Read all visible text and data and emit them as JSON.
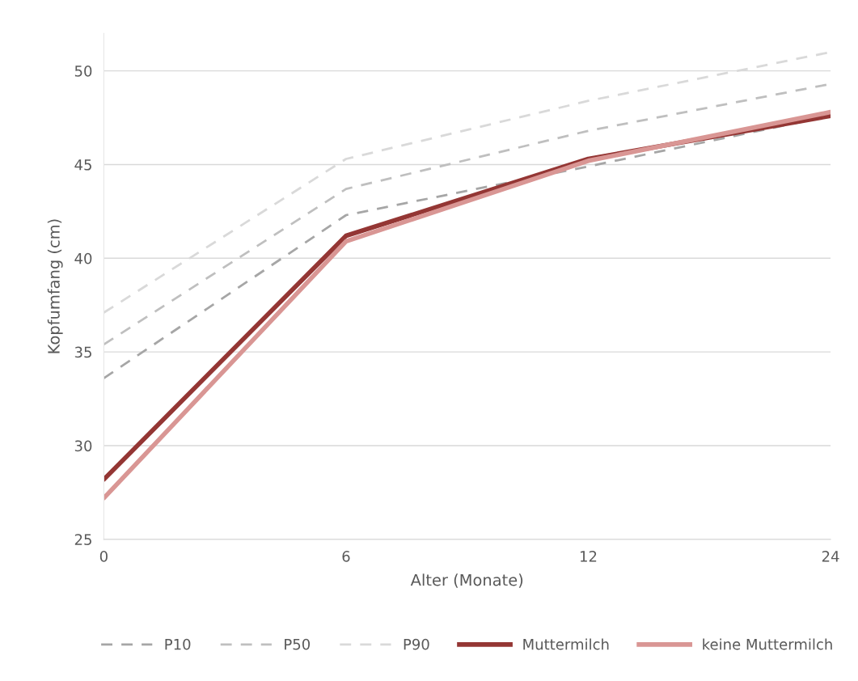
{
  "chart_data": {
    "type": "line",
    "xlabel": "Alter (Monate)",
    "ylabel": "Kopfumfang (cm)",
    "categories": [
      "0",
      "6",
      "12",
      "24"
    ],
    "series": [
      {
        "name": "P10",
        "color": "#a6a6a6",
        "line_style": "dashed",
        "values": [
          33.6,
          42.3,
          44.9,
          47.6
        ]
      },
      {
        "name": "P50",
        "color": "#bfbfbf",
        "line_style": "dashed",
        "values": [
          35.4,
          43.7,
          46.8,
          49.3
        ]
      },
      {
        "name": "P90",
        "color": "#d9d9d9",
        "line_style": "dashed",
        "values": [
          37.1,
          45.3,
          48.4,
          51.0
        ]
      },
      {
        "name": "Muttermilch",
        "color": "#943634",
        "line_style": "solid",
        "values": [
          28.2,
          41.2,
          45.3,
          47.6
        ]
      },
      {
        "name": "keine Muttermilch",
        "color": "#d99694",
        "line_style": "solid",
        "values": [
          27.2,
          40.9,
          45.2,
          47.8
        ]
      }
    ],
    "ylim": [
      25,
      52
    ],
    "yticks": [
      25,
      30,
      35,
      40,
      45,
      50
    ],
    "grid": "y",
    "legend": "bottom",
    "marker": "none"
  }
}
